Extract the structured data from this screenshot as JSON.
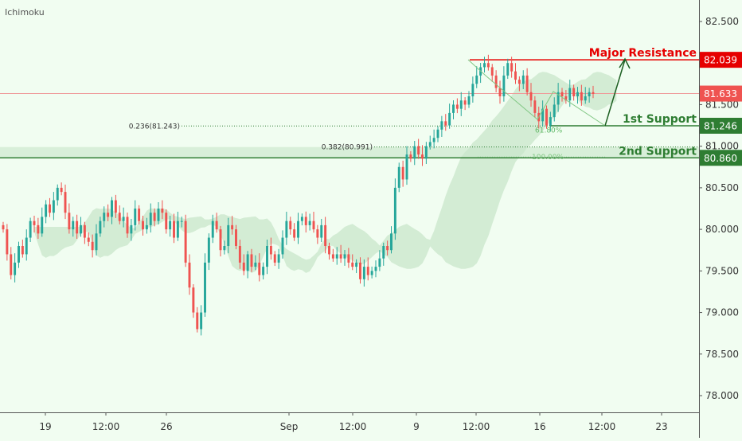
{
  "indicator_label": "Ichimoku",
  "chart_data": {
    "type": "candlestick",
    "y_axis": {
      "ticks": [
        "78.000",
        "78.500",
        "79.000",
        "79.500",
        "80.000",
        "80.500",
        "81.000",
        "81.500",
        "82.000",
        "82.500"
      ],
      "ylim": [
        77.9,
        82.75
      ]
    },
    "x_axis": {
      "ticks": [
        "19",
        "12:00",
        "26",
        "Sep",
        "12:00",
        "9",
        "12:00",
        "16",
        "12:00",
        "23"
      ]
    },
    "price_levels": [
      {
        "name": "Major Resistance",
        "value": 82.039,
        "label": "82.039",
        "color": "#e60000"
      },
      {
        "name": "current",
        "value": 81.633,
        "label": "81.633",
        "color": "#ef5350"
      },
      {
        "name": "1st Support",
        "value": 81.246,
        "label": "81.246",
        "color": "#2e7d32"
      },
      {
        "name": "2nd Support",
        "value": 80.86,
        "label": "80.860",
        "color": "#2e7d32"
      }
    ],
    "fib_levels": [
      {
        "label": "0.236(81.243)",
        "value": 81.243
      },
      {
        "label": "0.382(80.991)",
        "value": 80.991
      },
      {
        "label": "61.80%",
        "value": 81.24
      },
      {
        "label": "100.00%",
        "value": 80.87
      }
    ],
    "annotations": [
      "Major Resistance",
      "1st Support",
      "2nd Support"
    ],
    "series": [
      {
        "values": [
          80.0,
          79.7,
          79.45,
          79.6,
          79.8,
          79.7,
          79.9,
          80.1,
          80.05,
          79.95,
          80.15,
          80.3,
          80.2,
          80.35,
          80.5,
          80.45,
          80.2,
          80.0,
          80.1,
          79.95,
          80.05,
          79.9,
          79.85,
          79.75,
          79.95,
          80.1,
          80.2,
          80.15,
          80.35,
          80.2,
          80.1,
          80.15,
          79.95,
          80.05,
          80.25,
          80.1,
          80.0,
          80.05,
          80.2,
          80.1,
          80.25,
          80.2,
          80.0,
          80.1,
          79.9,
          80.1,
          80.1,
          79.6,
          79.3,
          79.0,
          78.8,
          79.0,
          79.6,
          79.9,
          80.1,
          80.0,
          79.75,
          79.8,
          80.05,
          80.0,
          79.8,
          79.6,
          79.5,
          79.7,
          79.55,
          79.6,
          79.45,
          79.55,
          79.8,
          79.7,
          79.6,
          79.7,
          79.9,
          80.1,
          80.0,
          79.9,
          80.1,
          80.15,
          80.05,
          80.1,
          80.0,
          79.9,
          80.05,
          79.8,
          79.7,
          79.65,
          79.7,
          79.65,
          79.7,
          79.6,
          79.55,
          79.6,
          79.4,
          79.55,
          79.45,
          79.5,
          79.55,
          79.65,
          79.8,
          79.75,
          79.95,
          80.5,
          80.75,
          80.6,
          80.9,
          80.85,
          81.0,
          80.9,
          80.85,
          81.0,
          81.05,
          81.1,
          81.2,
          81.3,
          81.25,
          81.4,
          81.5,
          81.45,
          81.55,
          81.5,
          81.6,
          81.75,
          81.85,
          81.95,
          82.0,
          81.95,
          81.85,
          81.7,
          81.6,
          81.85,
          82.0,
          81.9,
          81.8,
          81.75,
          81.85,
          81.65,
          81.55,
          81.4,
          81.3,
          81.45,
          81.25,
          81.35,
          81.5,
          81.65,
          81.6,
          81.55,
          81.7,
          81.6,
          81.65,
          81.55,
          81.6,
          81.65,
          81.63
        ]
      }
    ]
  }
}
